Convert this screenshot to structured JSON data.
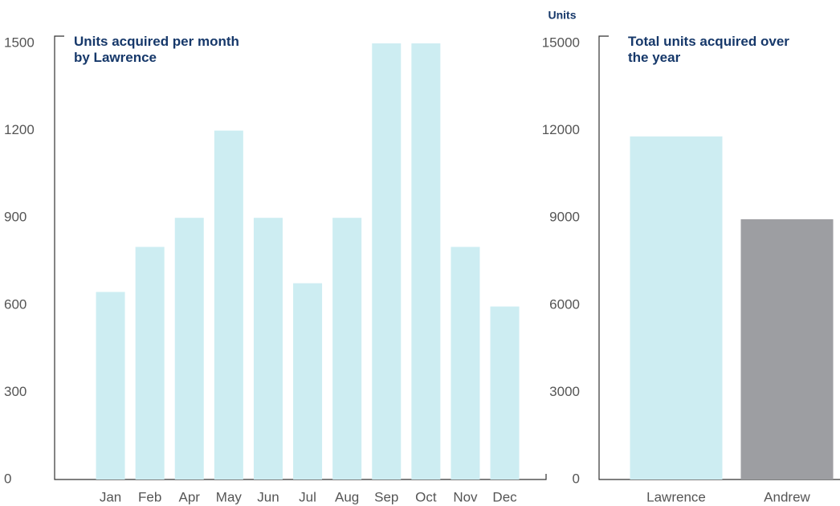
{
  "chart_data": [
    {
      "type": "bar",
      "title": "Units acquired per month by Lawrence",
      "categories": [
        "Jan",
        "Feb",
        "Apr",
        "May",
        "Jun",
        "Jul",
        "Aug",
        "Sep",
        "Oct",
        "Nov",
        "Dec"
      ],
      "values": [
        645,
        800,
        900,
        1200,
        900,
        675,
        900,
        1500,
        1500,
        800,
        595
      ],
      "color": "#cdedf2",
      "ylim": [
        0,
        1500
      ],
      "yticks": [
        0,
        300,
        600,
        900,
        1200,
        1500
      ],
      "grid": false
    },
    {
      "type": "bar",
      "title": "Total units acquired over the year",
      "y_label": "Units",
      "categories": [
        "Lawrence",
        "Andrew"
      ],
      "values": [
        11800,
        8950
      ],
      "colors": [
        "#cdedf2",
        "#9d9ea2"
      ],
      "ylim": [
        0,
        15000
      ],
      "yticks": [
        0,
        3000,
        6000,
        9000,
        12000,
        15000
      ],
      "grid": false
    }
  ]
}
